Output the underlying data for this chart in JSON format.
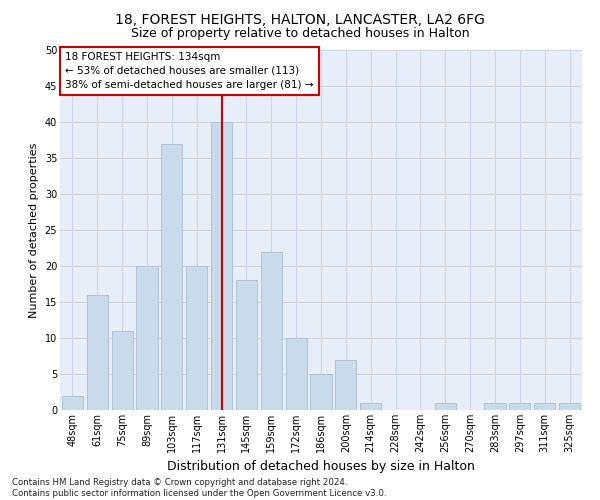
{
  "title1": "18, FOREST HEIGHTS, HALTON, LANCASTER, LA2 6FG",
  "title2": "Size of property relative to detached houses in Halton",
  "xlabel": "Distribution of detached houses by size in Halton",
  "ylabel": "Number of detached properties",
  "footnote": "Contains HM Land Registry data © Crown copyright and database right 2024.\nContains public sector information licensed under the Open Government Licence v3.0.",
  "bar_labels": [
    "48sqm",
    "61sqm",
    "75sqm",
    "89sqm",
    "103sqm",
    "117sqm",
    "131sqm",
    "145sqm",
    "159sqm",
    "172sqm",
    "186sqm",
    "200sqm",
    "214sqm",
    "228sqm",
    "242sqm",
    "256sqm",
    "270sqm",
    "283sqm",
    "297sqm",
    "311sqm",
    "325sqm"
  ],
  "bar_values": [
    2,
    16,
    11,
    20,
    37,
    20,
    40,
    18,
    22,
    10,
    5,
    7,
    1,
    0,
    0,
    1,
    0,
    1,
    1,
    1,
    1
  ],
  "bar_color": "#c9daea",
  "bar_edge_color": "#aabdd4",
  "highlight_bar_index": 6,
  "highlight_line_color": "#cc0000",
  "annotation_box_text": "18 FOREST HEIGHTS: 134sqm\n← 53% of detached houses are smaller (113)\n38% of semi-detached houses are larger (81) →",
  "annotation_box_color": "#cc0000",
  "annotation_box_bg": "#ffffff",
  "ylim": [
    0,
    50
  ],
  "yticks": [
    0,
    5,
    10,
    15,
    20,
    25,
    30,
    35,
    40,
    45,
    50
  ],
  "grid_color": "#c8d4e4",
  "bg_color": "#e8eef8",
  "title1_fontsize": 10,
  "title2_fontsize": 9,
  "xlabel_fontsize": 9,
  "ylabel_fontsize": 8,
  "tick_fontsize": 7,
  "annotation_fontsize": 7.5
}
